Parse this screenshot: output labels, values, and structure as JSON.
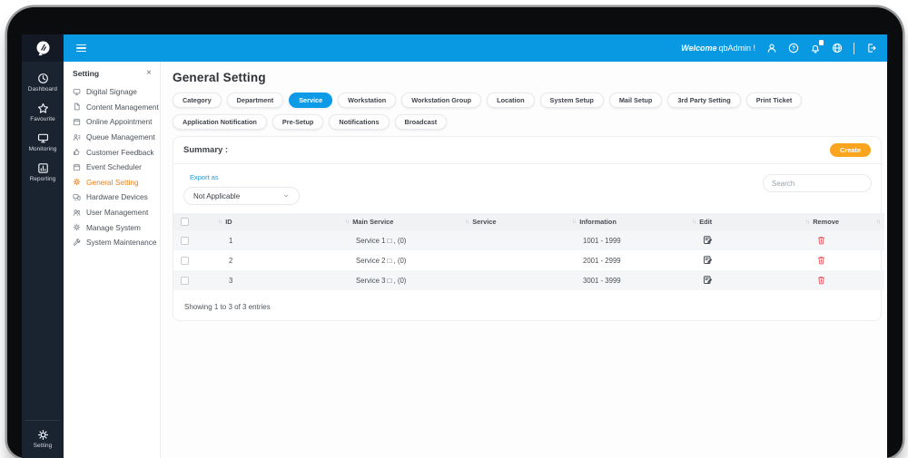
{
  "topbar": {
    "welcome_prefix": "Welcome",
    "welcome_user": "qbAdmin !",
    "icons": [
      {
        "name": "user-icon",
        "badge": false
      },
      {
        "name": "help-icon",
        "badge": false
      },
      {
        "name": "bell-icon",
        "badge": true
      },
      {
        "name": "globe-icon",
        "badge": false
      },
      {
        "name": "logout-icon",
        "badge": false
      }
    ]
  },
  "rail": {
    "items": [
      {
        "label": "Dashboard",
        "icon": "dashboard-icon"
      },
      {
        "label": "Favourite",
        "icon": "star-icon"
      },
      {
        "label": "Monitoring",
        "icon": "monitor-icon"
      },
      {
        "label": "Reporting",
        "icon": "report-icon"
      }
    ],
    "bottom_item": {
      "label": "Setting",
      "icon": "gear-icon"
    }
  },
  "sidebar": {
    "title": "Setting",
    "items": [
      {
        "label": "Digital Signage",
        "icon": "screen-icon",
        "active": false
      },
      {
        "label": "Content Management",
        "icon": "document-icon",
        "active": false
      },
      {
        "label": "Online Appointment",
        "icon": "calendar-icon",
        "active": false
      },
      {
        "label": "Queue Management",
        "icon": "queue-icon",
        "active": false
      },
      {
        "label": "Customer Feedback",
        "icon": "feedback-icon",
        "active": false
      },
      {
        "label": "Event Scheduler",
        "icon": "calendar-icon",
        "active": false
      },
      {
        "label": "General Setting",
        "icon": "gear-icon",
        "active": true
      },
      {
        "label": "Hardware Devices",
        "icon": "hardware-icon",
        "active": false
      },
      {
        "label": "User Management",
        "icon": "users-icon",
        "active": false
      },
      {
        "label": "Manage System",
        "icon": "gear-icon",
        "active": false
      },
      {
        "label": "System Maintenance",
        "icon": "tools-icon",
        "active": false
      }
    ]
  },
  "main": {
    "title": "General Setting",
    "tabs": [
      {
        "label": "Category",
        "active": false
      },
      {
        "label": "Department",
        "active": false
      },
      {
        "label": "Service",
        "active": true
      },
      {
        "label": "Workstation",
        "active": false
      },
      {
        "label": "Workstation Group",
        "active": false
      },
      {
        "label": "Location",
        "active": false
      },
      {
        "label": "System Setup",
        "active": false
      },
      {
        "label": "Mail Setup",
        "active": false
      },
      {
        "label": "3rd Party Setting",
        "active": false
      },
      {
        "label": "Print Ticket",
        "active": false
      },
      {
        "label": "Application Notification",
        "active": false
      },
      {
        "label": "Pre-Setup",
        "active": false
      },
      {
        "label": "Notifications",
        "active": false
      },
      {
        "label": "Broadcast",
        "active": false
      }
    ],
    "summary": {
      "heading": "Summary :",
      "create_label": "Create",
      "export_label": "Export as",
      "export_value": "Not Applicable",
      "search_placeholder": "Search",
      "table": {
        "columns": [
          "ID",
          "Main Service",
          "Service",
          "Information",
          "Edit",
          "Remove"
        ],
        "rows": [
          {
            "id": "1",
            "main_service": "Service 1 □ , (0)",
            "service": "",
            "information": "1001 - 1999"
          },
          {
            "id": "2",
            "main_service": "Service 2 □ , (0)",
            "service": "",
            "information": "2001 - 2999"
          },
          {
            "id": "3",
            "main_service": "Service 3 □ , (0)",
            "service": "",
            "information": "3001 - 3999"
          }
        ]
      },
      "footer": "Showing 1 to 3 of 3 entries"
    }
  },
  "colors": {
    "topbar_blue": "#0999e3",
    "active_tab_blue": "#0d9be8",
    "sidebar_active_orange": "#ee7d15",
    "create_orange": "#fba41d",
    "danger_red": "#e9606a",
    "rail_dark": "#1a2330"
  }
}
